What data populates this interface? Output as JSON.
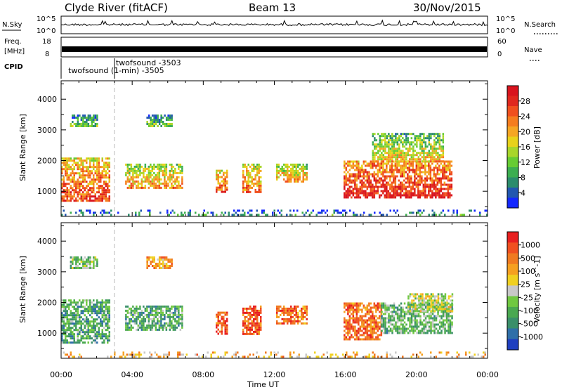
{
  "header": {
    "station": "Clyde River (fitACF)",
    "beam": "Beam 13",
    "date": "30/Nov/2015"
  },
  "strips": {
    "nsky_label": "N.Sky",
    "nsearch_label": "N.Search",
    "nsky_ticks": [
      "10^5",
      "10^0"
    ],
    "nsearch_ticks": [
      "10^5",
      "10^0"
    ],
    "freq_label_1": "Freq.",
    "freq_label_2": "[MHz]",
    "freq_ticks": [
      "18",
      "8"
    ],
    "nave_label": "Nave",
    "nave_ticks": [
      "60",
      "0"
    ],
    "cpid_label": "CPID",
    "cpid_entries": [
      {
        "time_h": 0.4,
        "text": "twofsound (1-min) -3505"
      },
      {
        "time_h": 3.0,
        "text": "twofsound -3503"
      }
    ],
    "mode_change_h": 3.0
  },
  "power_colorbar": {
    "label": "Power [dB]",
    "ticks": [
      "4",
      "8",
      "12",
      "16",
      "20",
      "24",
      "28"
    ],
    "colors": [
      "#1428ff",
      "#2257b0",
      "#2b8c6c",
      "#3cae50",
      "#66cc33",
      "#a8d62a",
      "#e8d21a",
      "#f5a623",
      "#f57d1e",
      "#f0501e",
      "#e0281e",
      "#d9141e"
    ]
  },
  "velocity_colorbar": {
    "label": "Velocity [m s^-1]",
    "ticks": [
      "1000",
      "500",
      "100",
      "25",
      "-25",
      "-100",
      "-500",
      "-1000"
    ],
    "colors": [
      "#1f3fbf",
      "#2f6fa8",
      "#3a8f6a",
      "#4aa850",
      "#70c840",
      "#c8c8c8",
      "#f0d020",
      "#f5a020",
      "#f07a20",
      "#f05020",
      "#e82020"
    ]
  },
  "chart_data": [
    {
      "type": "heatmap",
      "panel": "power",
      "ylabel": "Slant Range [km]",
      "xlabel": "Time UT",
      "x_ticks": [
        "00:00",
        "04:00",
        "08:00",
        "12:00",
        "16:00",
        "20:00",
        "00:00"
      ],
      "y_ticks": [
        "1000",
        "2000",
        "3000",
        "4000"
      ],
      "xlim_hours": [
        0,
        24
      ],
      "ylim_km": [
        180,
        4600
      ],
      "echo_regions": [
        {
          "t0": 0.0,
          "t1": 2.7,
          "r0": 700,
          "r1": 2100,
          "level": 0.7
        },
        {
          "t0": 3.6,
          "t1": 6.8,
          "r0": 1100,
          "r1": 1900,
          "level": 0.55
        },
        {
          "t0": 8.7,
          "t1": 9.3,
          "r0": 1000,
          "r1": 1700,
          "level": 0.65
        },
        {
          "t0": 10.2,
          "t1": 11.2,
          "r0": 1000,
          "r1": 1900,
          "level": 0.6
        },
        {
          "t0": 12.1,
          "t1": 13.8,
          "r0": 1300,
          "r1": 1900,
          "level": 0.55
        },
        {
          "t0": 15.9,
          "t1": 22.0,
          "r0": 800,
          "r1": 2000,
          "level": 0.8
        },
        {
          "t0": 0.5,
          "t1": 2.0,
          "r0": 3100,
          "r1": 3500,
          "level": 0.3
        },
        {
          "t0": 4.8,
          "t1": 6.2,
          "r0": 3100,
          "r1": 3500,
          "level": 0.3
        },
        {
          "t0": 17.5,
          "t1": 21.5,
          "r0": 2000,
          "r1": 2900,
          "level": 0.45
        },
        {
          "t0": 0.0,
          "t1": 24.0,
          "r0": 200,
          "r1": 400,
          "level": 0.2
        }
      ]
    },
    {
      "type": "heatmap",
      "panel": "velocity",
      "ylabel": "Slant Range [km]",
      "xlabel": "Time UT",
      "x_ticks": [
        "00:00",
        "04:00",
        "08:00",
        "12:00",
        "16:00",
        "20:00",
        "00:00"
      ],
      "y_ticks": [
        "1000",
        "2000",
        "3000",
        "4000"
      ],
      "xlim_hours": [
        0,
        24
      ],
      "ylim_km": [
        180,
        4600
      ],
      "echo_regions": [
        {
          "t0": 0.0,
          "t1": 2.7,
          "r0": 700,
          "r1": 2100,
          "level": 0.3
        },
        {
          "t0": 3.6,
          "t1": 6.8,
          "r0": 1100,
          "r1": 1900,
          "level": 0.32
        },
        {
          "t0": 8.7,
          "t1": 9.3,
          "r0": 1000,
          "r1": 1700,
          "level": 0.85
        },
        {
          "t0": 10.2,
          "t1": 11.2,
          "r0": 1000,
          "r1": 1900,
          "level": 0.85
        },
        {
          "t0": 12.1,
          "t1": 13.8,
          "r0": 1300,
          "r1": 1900,
          "level": 0.8
        },
        {
          "t0": 15.9,
          "t1": 18.0,
          "r0": 800,
          "r1": 2000,
          "level": 0.8
        },
        {
          "t0": 18.0,
          "t1": 22.0,
          "r0": 1000,
          "r1": 2000,
          "level": 0.35
        },
        {
          "t0": 19.5,
          "t1": 22.0,
          "r0": 1700,
          "r1": 2300,
          "level": 0.5
        },
        {
          "t0": 0.5,
          "t1": 2.0,
          "r0": 3100,
          "r1": 3500,
          "level": 0.4
        },
        {
          "t0": 4.8,
          "t1": 6.2,
          "r0": 3100,
          "r1": 3500,
          "level": 0.7
        },
        {
          "t0": 0.0,
          "t1": 24.0,
          "r0": 200,
          "r1": 400,
          "level": 0.65
        }
      ]
    }
  ]
}
